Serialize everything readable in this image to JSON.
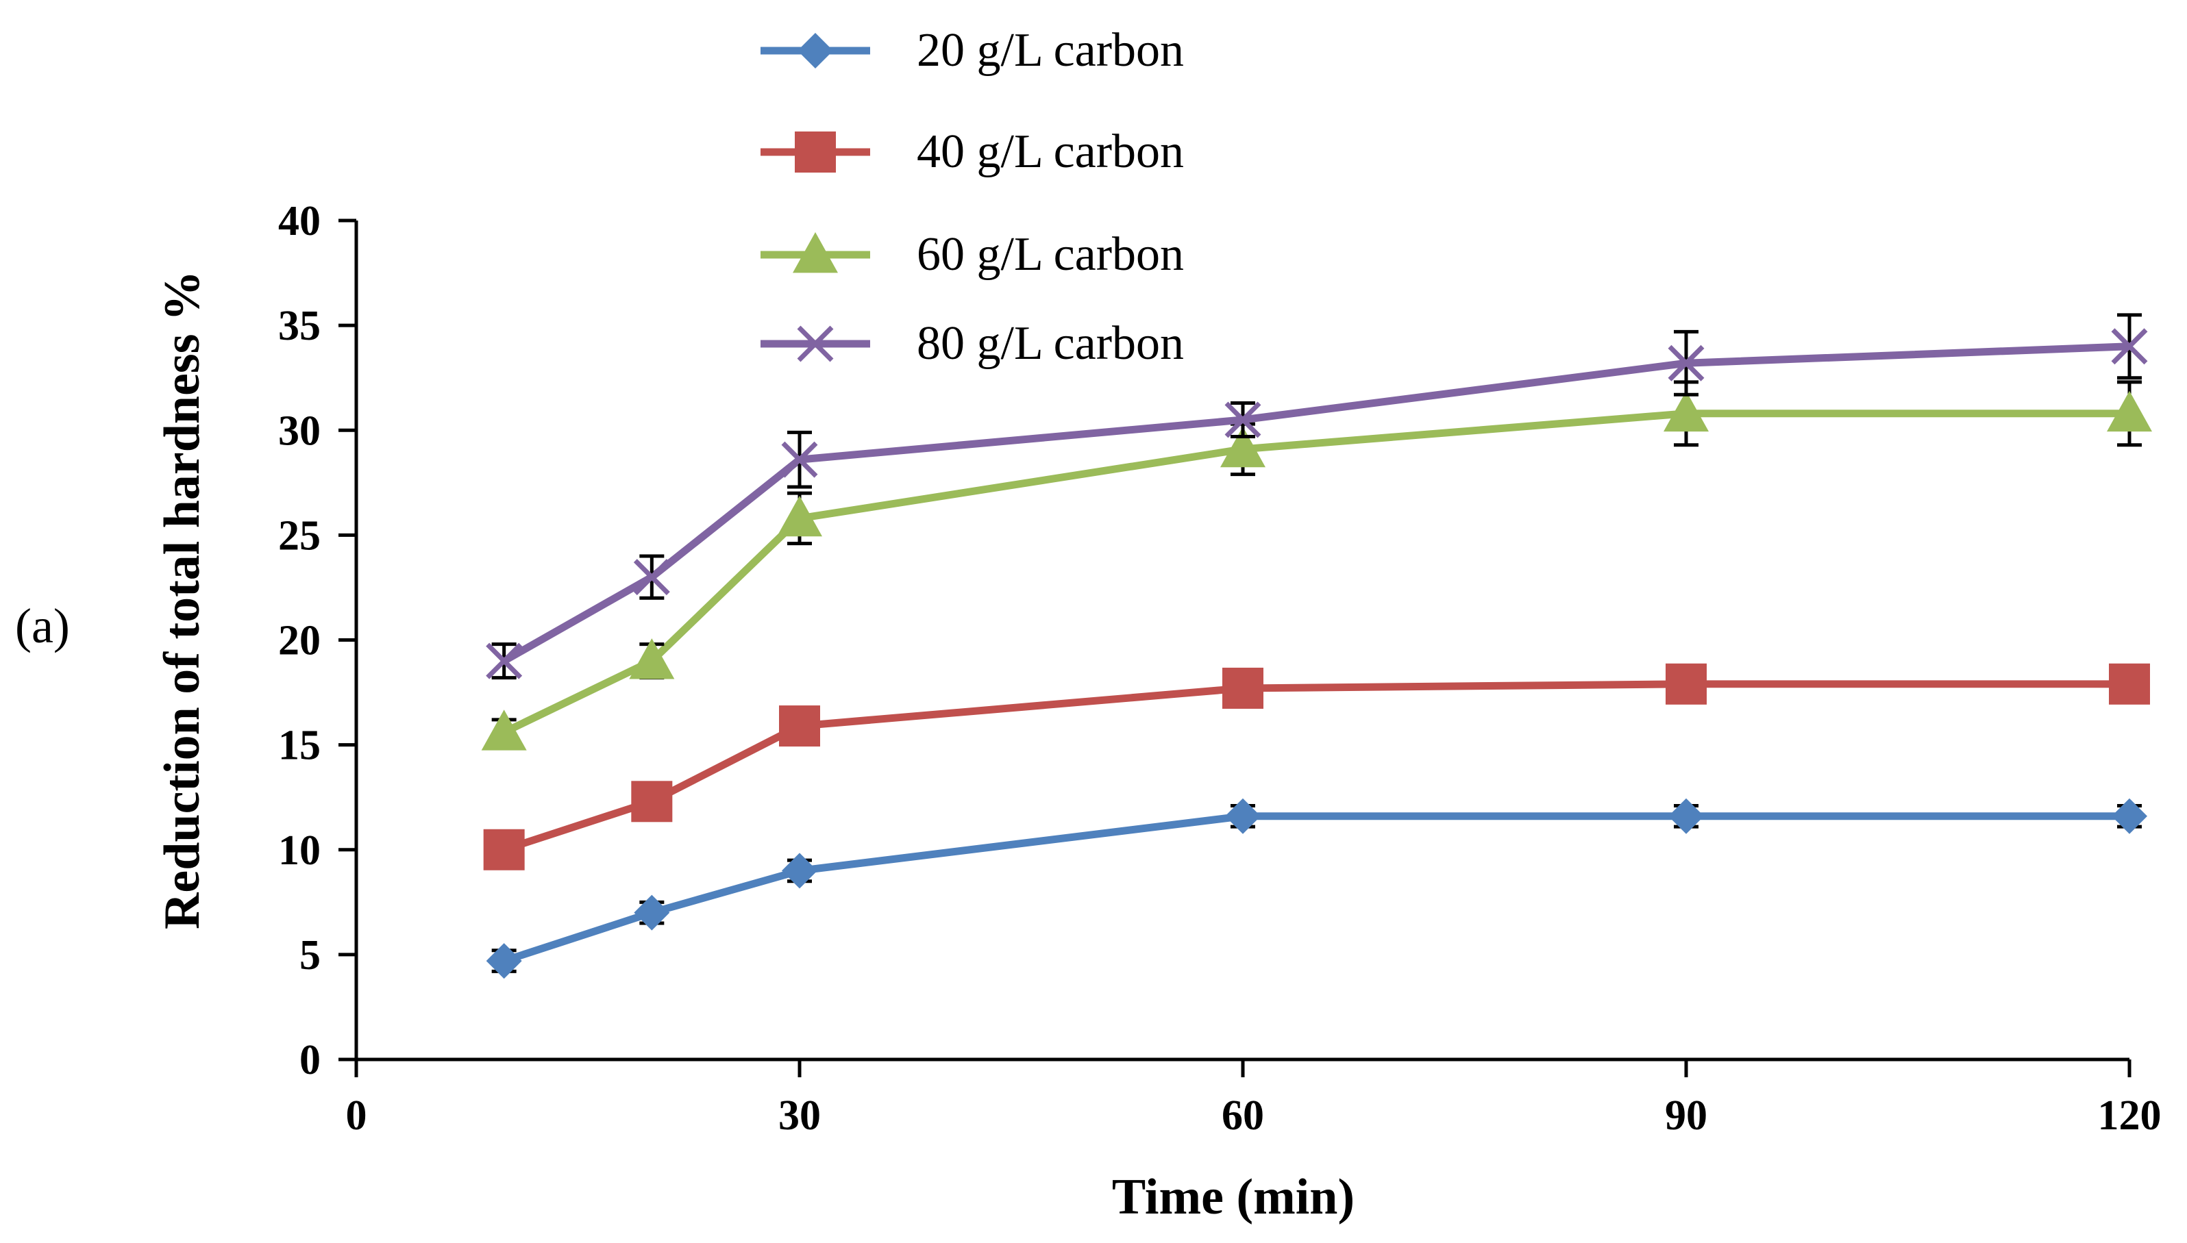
{
  "chart_data": {
    "type": "line",
    "panel_label": "(a)",
    "title": "",
    "xlabel": "Time (min)",
    "ylabel": "Reduction of total hardness %",
    "xlim": [
      0,
      120
    ],
    "ylim": [
      0,
      40
    ],
    "xticks": [
      0,
      30,
      60,
      90,
      120
    ],
    "yticks": [
      0,
      5,
      10,
      15,
      20,
      25,
      30,
      35,
      40
    ],
    "grid": false,
    "legend_position": "top",
    "x": [
      10,
      20,
      30,
      60,
      90,
      120
    ],
    "series": [
      {
        "name": "20 g/L carbon",
        "color": "#4f81bd",
        "marker": "diamond",
        "values": [
          4.7,
          7.0,
          9.0,
          11.6,
          11.6,
          11.6
        ],
        "errors": [
          0.5,
          0.5,
          0.5,
          0.5,
          0.5,
          0.5
        ]
      },
      {
        "name": "40 g/L carbon",
        "color": "#c0504d",
        "marker": "square",
        "values": [
          10.0,
          12.3,
          15.9,
          17.7,
          17.9,
          17.9
        ],
        "errors": [
          0.6,
          0.6,
          0.8,
          0.8,
          0.8,
          0.8
        ]
      },
      {
        "name": "60 g/L carbon",
        "color": "#9bbb59",
        "marker": "triangle",
        "values": [
          15.6,
          19.0,
          25.8,
          29.1,
          30.8,
          30.8
        ],
        "errors": [
          0.6,
          0.8,
          1.2,
          1.2,
          1.5,
          1.5
        ]
      },
      {
        "name": "80 g/L carbon",
        "color": "#8064a2",
        "marker": "x",
        "values": [
          19.0,
          23.0,
          28.6,
          30.5,
          33.2,
          34.0
        ],
        "errors": [
          0.8,
          1.0,
          1.3,
          0.8,
          1.5,
          1.5
        ]
      }
    ]
  }
}
